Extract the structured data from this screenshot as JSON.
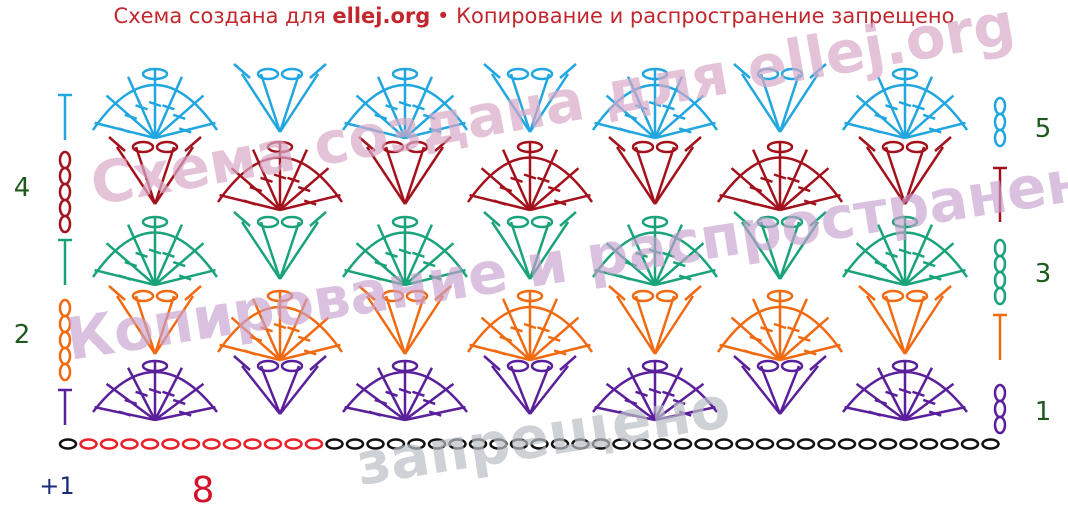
{
  "header": {
    "prefix": "Схема создана для",
    "site": "ellej.org",
    "separator": "•",
    "notice": "Копирование и распространение запрещено"
  },
  "row_labels": {
    "row1": "1",
    "row2": "2",
    "row3": "3",
    "row4": "4",
    "row5": "5"
  },
  "foundation": {
    "extra": "+1",
    "repeat": "8"
  },
  "watermark": {
    "line1": "Схема создана для ellej.org",
    "line2": "Копирование и распространение",
    "line3": "запрещено"
  }
}
